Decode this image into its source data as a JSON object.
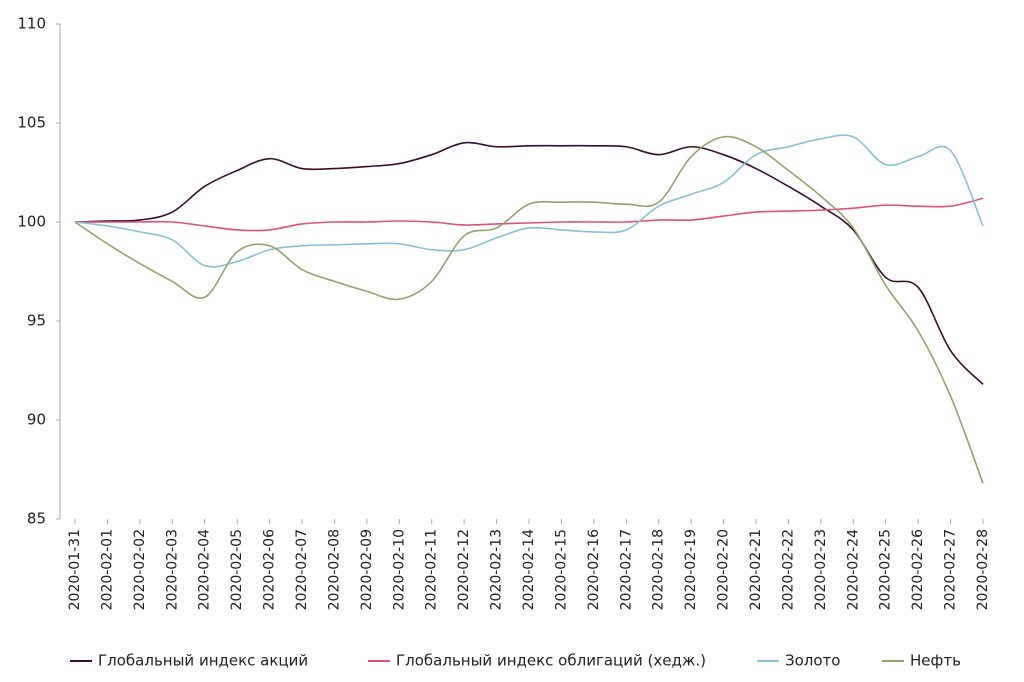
{
  "chart_data": {
    "type": "line",
    "categories": [
      "2020-01-31",
      "2020-02-01",
      "2020-02-02",
      "2020-02-03",
      "2020-02-04",
      "2020-02-05",
      "2020-02-06",
      "2020-02-07",
      "2020-02-08",
      "2020-02-09",
      "2020-02-10",
      "2020-02-11",
      "2020-02-12",
      "2020-02-13",
      "2020-02-14",
      "2020-02-15",
      "2020-02-16",
      "2020-02-17",
      "2020-02-18",
      "2020-02-19",
      "2020-02-20",
      "2020-02-21",
      "2020-02-22",
      "2020-02-23",
      "2020-02-24",
      "2020-02-25",
      "2020-02-26",
      "2020-02-27",
      "2020-02-28"
    ],
    "series": [
      {
        "name": "Глобальный индекс акций",
        "color": "#3a0d2e",
        "values": [
          100,
          100.05,
          100.1,
          100.5,
          101.8,
          102.6,
          103.2,
          102.7,
          102.7,
          102.8,
          102.95,
          103.4,
          104.0,
          103.8,
          103.85,
          103.85,
          103.85,
          103.8,
          103.4,
          103.8,
          103.4,
          102.7,
          101.8,
          100.8,
          99.6,
          97.2,
          96.7,
          93.5,
          91.8
        ]
      },
      {
        "name": "Глобальный индекс облигаций (хедж.)",
        "color": "#e0517a",
        "values": [
          100,
          100,
          100,
          100,
          99.8,
          99.6,
          99.6,
          99.9,
          100,
          100,
          100.05,
          100,
          99.85,
          99.9,
          99.95,
          100,
          100,
          100,
          100.1,
          100.1,
          100.3,
          100.5,
          100.55,
          100.6,
          100.7,
          100.85,
          100.8,
          100.8,
          101.2
        ]
      },
      {
        "name": "Золото",
        "color": "#86c1d6",
        "values": [
          100,
          99.8,
          99.5,
          99.1,
          97.8,
          98.0,
          98.6,
          98.8,
          98.85,
          98.9,
          98.9,
          98.6,
          98.6,
          99.2,
          99.7,
          99.6,
          99.5,
          99.6,
          100.8,
          101.4,
          102.0,
          103.4,
          103.8,
          104.2,
          104.3,
          102.9,
          103.3,
          103.6,
          99.8
        ]
      },
      {
        "name": "Нефть",
        "color": "#93a36d",
        "values": [
          100,
          98.9,
          97.9,
          97.0,
          96.2,
          98.5,
          98.8,
          97.6,
          97.0,
          96.5,
          96.1,
          97.0,
          99.3,
          99.7,
          100.9,
          101.0,
          101.0,
          100.9,
          101.0,
          103.3,
          104.3,
          103.8,
          102.6,
          101.3,
          99.7,
          96.8,
          94.5,
          91.2,
          86.8
        ]
      }
    ],
    "ylim": [
      85,
      110
    ],
    "yticks": [
      85,
      90,
      95,
      100,
      105,
      110
    ],
    "grid": false
  }
}
